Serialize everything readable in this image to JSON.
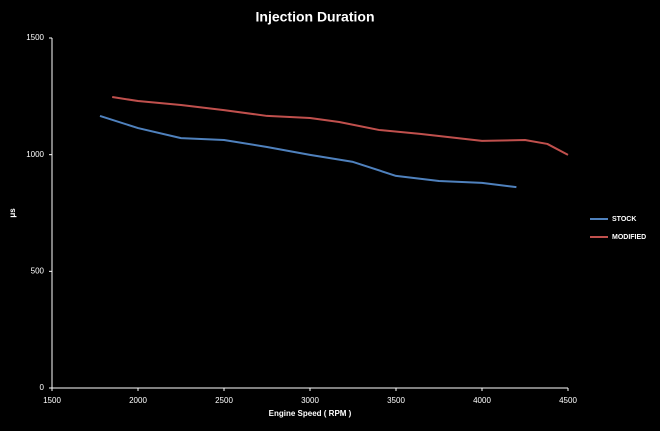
{
  "chart_data": {
    "type": "line",
    "title": "Injection Duration",
    "x_label": "Engine Speed ( RPM )",
    "y_label": "μs",
    "xlim": [
      1500,
      4500
    ],
    "xticks": [
      1500,
      2000,
      2500,
      3000,
      3500,
      4000,
      4500
    ],
    "ylim": [
      0,
      1500
    ],
    "yticks": [
      0,
      500,
      1000,
      1500
    ],
    "legend": "right",
    "series": [
      {
        "name": "STOCK",
        "color": "#4f81bd",
        "x": [
          1779,
          2000,
          2250,
          2500,
          2750,
          3000,
          3250,
          3500,
          3750,
          4000,
          4200
        ],
        "values": [
          1166,
          1114,
          1071,
          1063,
          1033,
          999,
          969,
          909,
          887,
          879,
          861
        ]
      },
      {
        "name": "MODIFIED",
        "color": "#c0504d",
        "x": [
          1850,
          2000,
          2250,
          2500,
          2750,
          3000,
          3170,
          3400,
          3640,
          4000,
          4250,
          4380,
          4500
        ],
        "values": [
          1247,
          1230,
          1213,
          1191,
          1166,
          1157,
          1140,
          1106,
          1089,
          1059,
          1063,
          1046,
          999
        ]
      }
    ]
  }
}
